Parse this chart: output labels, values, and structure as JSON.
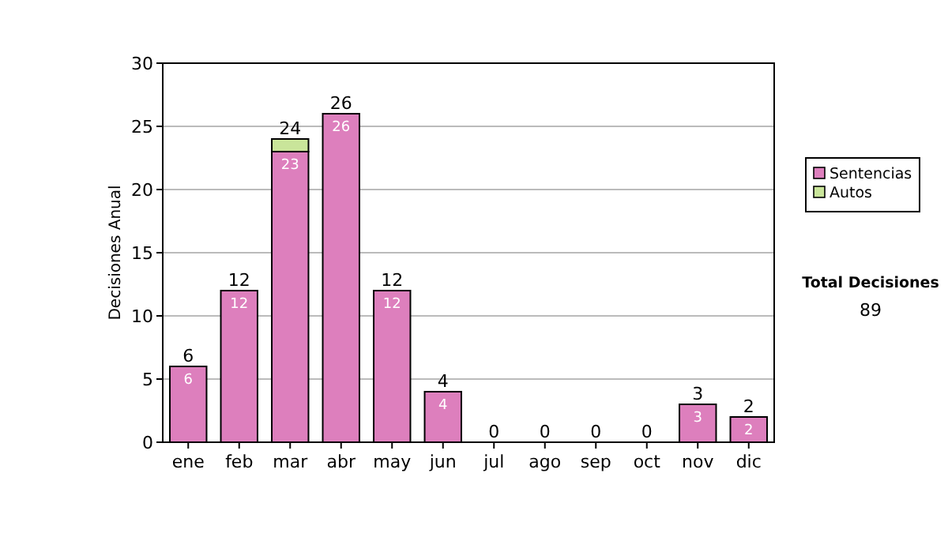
{
  "chart_data": {
    "type": "bar",
    "stacked": true,
    "ylabel": "Decisiones Anual",
    "categories": [
      "ene",
      "feb",
      "mar",
      "abr",
      "may",
      "jun",
      "jul",
      "ago",
      "sep",
      "oct",
      "nov",
      "dic"
    ],
    "series": [
      {
        "name": "Sentencias",
        "color": "#dd7fbd",
        "values": [
          6,
          12,
          23,
          26,
          12,
          4,
          0,
          0,
          0,
          0,
          3,
          2
        ],
        "value_labels": [
          "6",
          "12",
          "23",
          "26",
          "12",
          "4",
          null,
          null,
          null,
          null,
          "3",
          "2"
        ]
      },
      {
        "name": "Autos",
        "color": "#c9e59a",
        "values": [
          0,
          0,
          1,
          0,
          0,
          0,
          0,
          0,
          0,
          0,
          0,
          0
        ]
      }
    ],
    "totals": [
      "6",
      "12",
      "24",
      "26",
      "12",
      "4",
      "0",
      "0",
      "0",
      "0",
      "3",
      "2"
    ],
    "ylim": [
      0,
      30
    ],
    "yticks": [
      0,
      5,
      10,
      15,
      20,
      25,
      30
    ],
    "grid": "y",
    "legend": "right",
    "annotations": [
      "Total Decisiones",
      "89"
    ]
  }
}
